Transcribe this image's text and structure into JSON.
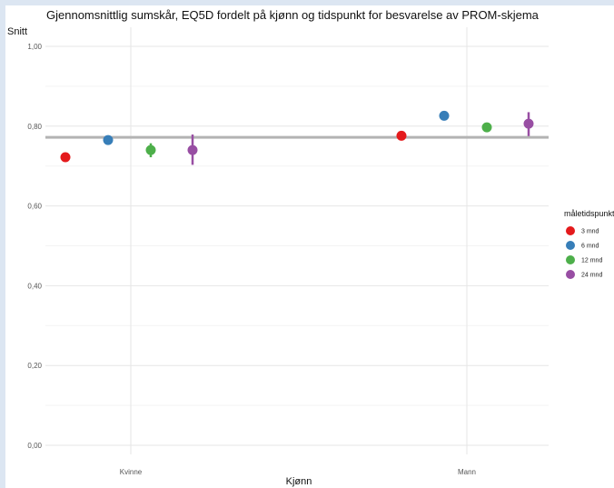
{
  "chart_data": {
    "type": "scatter",
    "title": "Gjennomsnittlig sumskår, EQ5D fordelt på kjønn og tidspunkt for besvarelse av PROM-skjema",
    "xlabel": "Kjønn",
    "ylabel": "Snitt",
    "categories": [
      "Kvinne",
      "Mann"
    ],
    "ylim": [
      0,
      1.0
    ],
    "yticks": [
      "0,00",
      "0,20",
      "0,40",
      "0,60",
      "0,80",
      "1,00"
    ],
    "reference_line": 0.772,
    "legend_title": "måletidspunkt",
    "legend_position": "right",
    "grid": true,
    "series": [
      {
        "name": "3 mnd",
        "color": "#e41a1c",
        "values": [
          0.722,
          0.776
        ],
        "lower": [
          0.722,
          0.776
        ],
        "upper": [
          0.722,
          0.776
        ]
      },
      {
        "name": "6 mnd",
        "color": "#377eb8",
        "values": [
          0.765,
          0.826
        ],
        "lower": [
          0.76,
          0.822
        ],
        "upper": [
          0.77,
          0.83
        ]
      },
      {
        "name": "12 mnd",
        "color": "#4daf4a",
        "values": [
          0.74,
          0.797
        ],
        "lower": [
          0.722,
          0.787
        ],
        "upper": [
          0.757,
          0.807
        ]
      },
      {
        "name": "24 mnd",
        "color": "#984ea3",
        "values": [
          0.74,
          0.806
        ],
        "lower": [
          0.703,
          0.775
        ],
        "upper": [
          0.779,
          0.835
        ]
      }
    ]
  }
}
